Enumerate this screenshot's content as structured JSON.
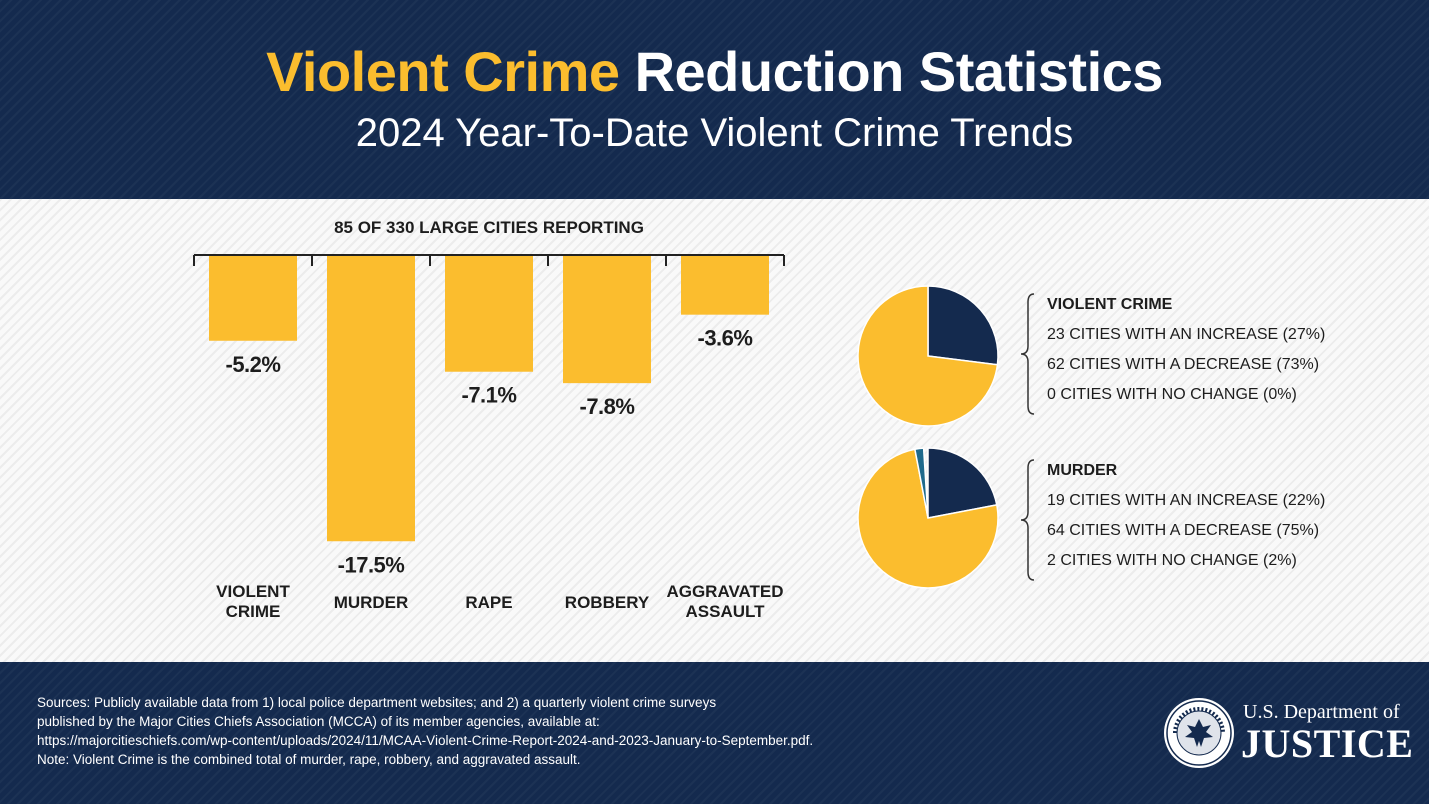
{
  "header": {
    "title_highlight": "Violent Crime",
    "title_rest": "Reduction Statistics",
    "subtitle": "2024 Year-To-Date Violent Crime Trends"
  },
  "chart_data": [
    {
      "type": "bar",
      "title": "85 OF 330 LARGE CITIES REPORTING",
      "categories": [
        [
          "VIOLENT",
          "CRIME"
        ],
        [
          "MURDER"
        ],
        [
          "RAPE"
        ],
        [
          "ROBBERY"
        ],
        [
          "AGGRAVATED",
          "ASSAULT"
        ]
      ],
      "values": [
        -5.2,
        -17.5,
        -7.1,
        -7.8,
        -3.6
      ],
      "value_labels": [
        "-5.2%",
        "-17.5%",
        "-7.1%",
        "-7.8%",
        "-3.6%"
      ],
      "unit": "%",
      "color": "#fbbd2e"
    },
    {
      "type": "pie",
      "title": "VIOLENT CRIME",
      "slices": [
        {
          "label": "23 CITIES WITH AN INCREASE (27%)",
          "count": 23,
          "percent": 27,
          "color": "#142a4e"
        },
        {
          "label": "62 CITIES WITH A DECREASE (73%)",
          "count": 62,
          "percent": 73,
          "color": "#fbbd2e"
        },
        {
          "label": "0 CITIES WITH NO CHANGE (0%)",
          "count": 0,
          "percent": 0,
          "color": "#1f6a8c"
        }
      ]
    },
    {
      "type": "pie",
      "title": "MURDER",
      "slices": [
        {
          "label": "19 CITIES WITH AN INCREASE (22%)",
          "count": 19,
          "percent": 22,
          "color": "#142a4e"
        },
        {
          "label": "64 CITIES WITH A DECREASE (75%)",
          "count": 64,
          "percent": 75,
          "color": "#fbbd2e"
        },
        {
          "label": "2 CITIES WITH NO CHANGE (2%)",
          "count": 2,
          "percent": 2,
          "color": "#1f6a8c"
        }
      ]
    }
  ],
  "footer": {
    "sources": [
      "Sources: Publicly available data from 1) local police department websites; and 2) a quarterly violent crime surveys",
      "published by the Major Cities Chiefs Association (MCCA) of its member agencies, available at:",
      "https://majorcitieschiefs.com/wp-content/uploads/2024/11/MCAA-Violent-Crime-Report-2024-and-2023-January-to-September.pdf.",
      "Note: Violent Crime is the combined total of murder, rape, robbery, and aggravated assault."
    ],
    "seal_text": "DEPARTMENT OF JUSTICE",
    "agency_small": "U.S. Department of",
    "agency_big": "JUSTICE"
  },
  "colors": {
    "navy": "#142a4e",
    "gold": "#fbbd2e",
    "teal": "#1f6a8c"
  }
}
